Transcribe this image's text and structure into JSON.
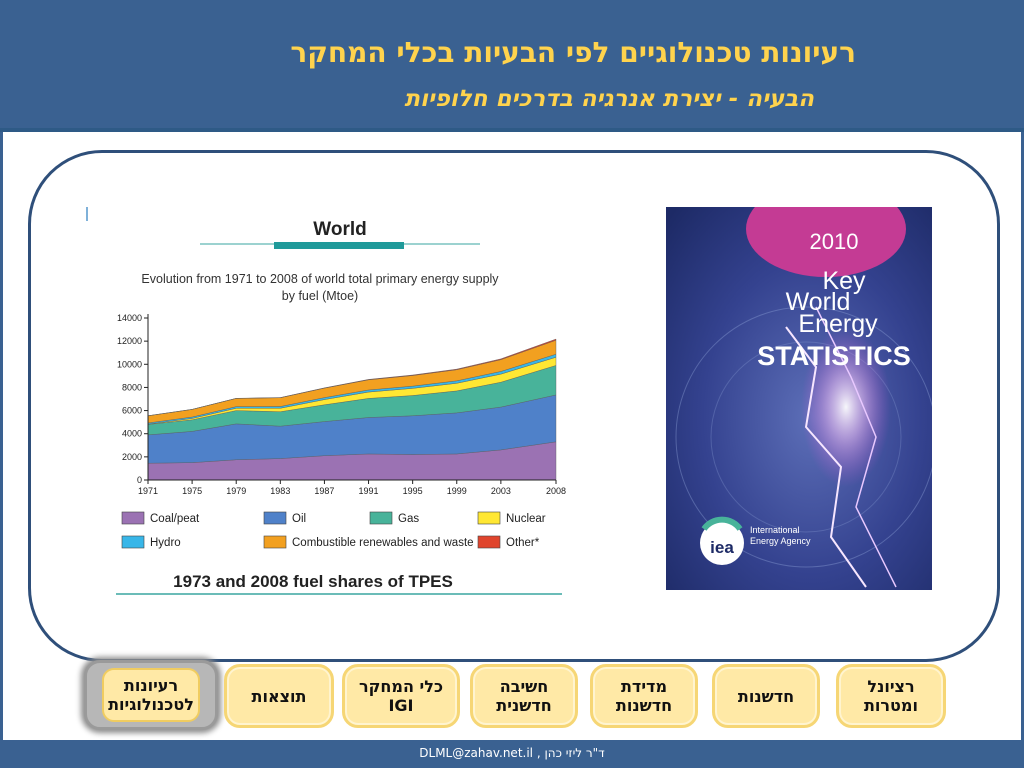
{
  "header": {
    "title": "רעיונות טכנולוגיים לפי הבעיות בכלי המחקר",
    "subtitle": "הבעיה - יצירת אנרגיה בדרכים חלופיות"
  },
  "chart_data": {
    "type": "area",
    "heading": "World",
    "title": "Evolution from 1971 to 2008 of world total primary energy supply",
    "title_line2": "by fuel (Mtoe)",
    "x": [
      1971,
      1975,
      1979,
      1983,
      1987,
      1991,
      1995,
      1999,
      2003,
      2008
    ],
    "x_tick_labels": [
      "1971",
      "1975",
      "1979",
      "1983",
      "1987",
      "1991",
      "1995",
      "1999",
      "2003",
      "2008"
    ],
    "ylim": [
      0,
      14000
    ],
    "y_ticks": [
      0,
      2000,
      4000,
      6000,
      8000,
      10000,
      12000,
      14000
    ],
    "y_tick_labels": [
      "0",
      "2000",
      "4000",
      "6000",
      "8000",
      "10000",
      "12000",
      "14000"
    ],
    "series": [
      {
        "name": "Coal/peat",
        "color": "#9b72b3",
        "values": [
          1450,
          1500,
          1750,
          1850,
          2100,
          2250,
          2200,
          2250,
          2600,
          3300
        ]
      },
      {
        "name": "Oil",
        "color": "#4f81c9",
        "values": [
          2450,
          2700,
          3100,
          2800,
          2950,
          3150,
          3350,
          3550,
          3700,
          4050
        ]
      },
      {
        "name": "Gas",
        "color": "#48b39a",
        "values": [
          900,
          1000,
          1150,
          1250,
          1450,
          1650,
          1750,
          1900,
          2150,
          2550
        ]
      },
      {
        "name": "Nuclear",
        "color": "#ffe733",
        "values": [
          30,
          120,
          200,
          300,
          450,
          550,
          620,
          660,
          700,
          710
        ]
      },
      {
        "name": "Hydro",
        "color": "#38b6e8",
        "values": [
          100,
          120,
          140,
          150,
          170,
          180,
          190,
          210,
          230,
          260
        ]
      },
      {
        "name": "Combustible renewables and waste",
        "color": "#f2a020",
        "values": [
          620,
          660,
          710,
          760,
          820,
          880,
          920,
          960,
          1020,
          1210
        ]
      },
      {
        "name": "Other*",
        "color": "#e0452d",
        "values": [
          5,
          8,
          12,
          15,
          25,
          35,
          45,
          55,
          70,
          100
        ]
      }
    ],
    "footer_caption": "1973 and 2008 fuel shares of TPES"
  },
  "book": {
    "year": "2010",
    "line1": "Key",
    "line2": "World",
    "line3": "Energy",
    "line4": "STATISTICS",
    "logo": "iea",
    "agency_line1": "International",
    "agency_line2": "Energy Agency"
  },
  "nav": {
    "items": [
      {
        "line1": "רעיונות",
        "line2": "לטכנולוגיות"
      },
      {
        "line1": "תוצאות",
        "line2": ""
      },
      {
        "line1": "כלי המחקר",
        "line2": "IGI"
      },
      {
        "line1": "חשיבה",
        "line2": "חדשנית"
      },
      {
        "line1": "מדידת",
        "line2": "חדשנות"
      },
      {
        "line1": "חדשנות",
        "line2": ""
      },
      {
        "line1": "רציונל",
        "line2": "ומטרות"
      }
    ]
  },
  "footer": {
    "text": "ד\"ר ליזי כהן , DLML@zahav.net.il"
  }
}
